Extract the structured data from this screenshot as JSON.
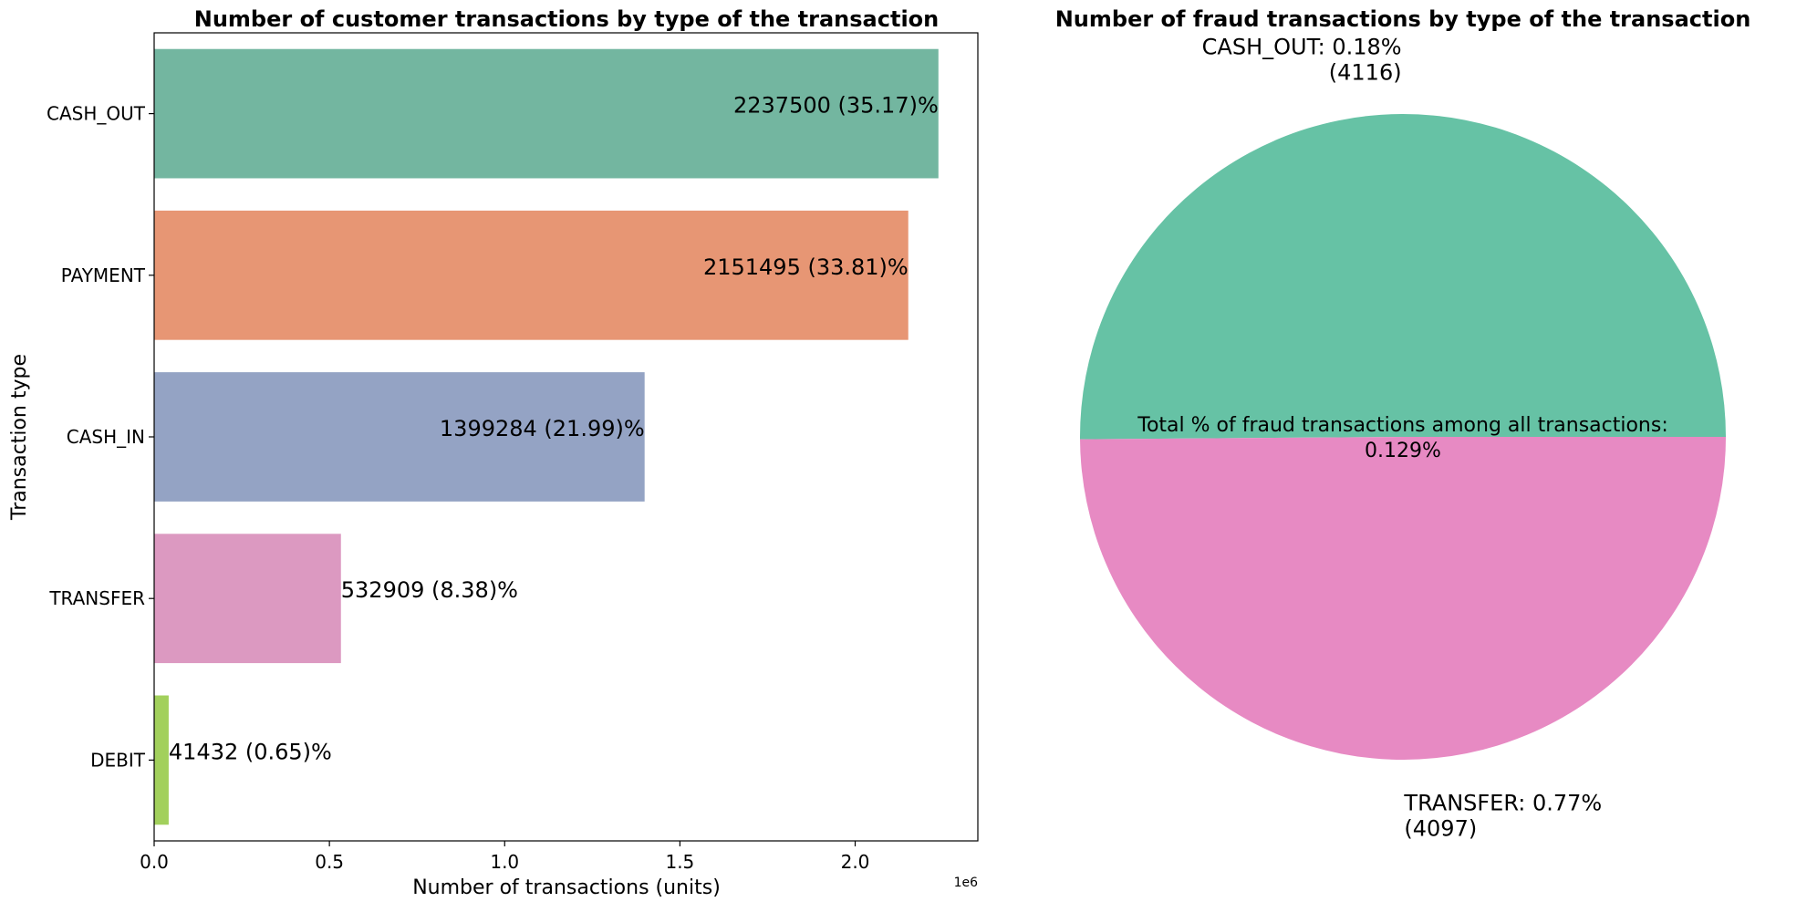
{
  "chart_data": [
    {
      "type": "bar",
      "orientation": "horizontal",
      "title": "Number of customer transactions by type of the transaction",
      "xlabel": "Number of transactions (units)",
      "ylabel": "Transaction type",
      "x_offset_label": "1e6",
      "xlim": [
        0,
        2350000
      ],
      "xticks": [
        0,
        500000,
        1000000,
        1500000,
        2000000
      ],
      "xtick_labels": [
        "0.0",
        "0.5",
        "1.0",
        "1.5",
        "2.0"
      ],
      "categories": [
        "CASH_OUT",
        "PAYMENT",
        "CASH_IN",
        "TRANSFER",
        "DEBIT"
      ],
      "values": [
        2237500,
        2151495,
        1399284,
        532909,
        41432
      ],
      "labels": [
        "2237500 (35.17)%",
        "2151495 (33.81)%",
        "1399284 (21.99)%",
        "532909 (8.38)%",
        "41432 (0.65)%"
      ],
      "colors": [
        "#73b6a0",
        "#e79674",
        "#94a3c4",
        "#dc99c1",
        "#a2d05c"
      ],
      "grid": false
    },
    {
      "type": "pie",
      "title": "Number of fraud transactions by type of the transaction",
      "slices": [
        {
          "name": "CASH_OUT",
          "value": 4116,
          "label_line1": "CASH_OUT: 0.18%",
          "label_line2": "(4116)",
          "color": "#66c2a5"
        },
        {
          "name": "TRANSFER",
          "value": 4097,
          "label_line1": "TRANSFER: 0.77%",
          "label_line2": "(4097)",
          "color": "#e78ac3"
        }
      ],
      "center_text_line1": "Total % of fraud transactions among all transactions:",
      "center_text_line2": "0.129%"
    }
  ]
}
